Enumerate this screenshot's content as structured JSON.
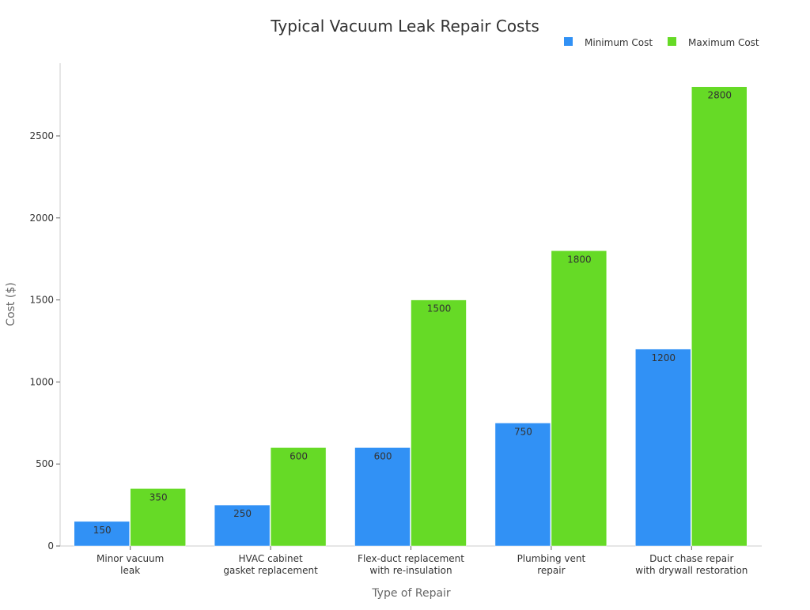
{
  "chart_data": {
    "type": "bar",
    "title": "Typical Vacuum Leak Repair Costs",
    "xlabel": "Type of Repair",
    "ylabel": "Cost ($)",
    "categories": [
      [
        "Minor vacuum",
        "leak"
      ],
      [
        "HVAC cabinet",
        "gasket replacement"
      ],
      [
        "Flex-duct replacement",
        "with re-insulation"
      ],
      [
        "Plumbing vent",
        "repair"
      ],
      [
        "Duct chase repair",
        "with drywall restoration"
      ]
    ],
    "series": [
      {
        "name": "Minimum Cost",
        "color": "#3191F5",
        "values": [
          150,
          250,
          600,
          750,
          1200
        ]
      },
      {
        "name": "Maximum Cost",
        "color": "#66DA26",
        "values": [
          350,
          600,
          1500,
          1800,
          2800
        ]
      }
    ],
    "yticks": [
      0,
      500,
      1000,
      1500,
      2000,
      2500
    ],
    "ylim": [
      0,
      2940
    ],
    "grid": false,
    "legend": "top-right",
    "data_labels": true
  }
}
